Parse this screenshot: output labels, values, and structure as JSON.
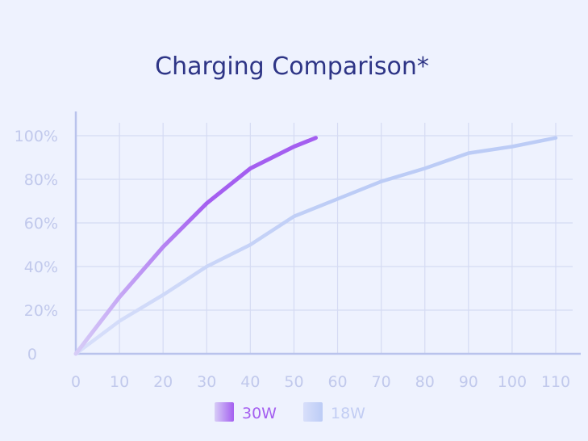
{
  "chart_data": {
    "type": "line",
    "title": "Charging Comparison*",
    "xlabel": "",
    "ylabel": "",
    "xlim": [
      0,
      110
    ],
    "ylim": [
      0,
      100
    ],
    "x_ticks": [
      0,
      10,
      20,
      30,
      40,
      50,
      60,
      70,
      80,
      90,
      100,
      110
    ],
    "x_tick_labels": [
      "0",
      "10",
      "20",
      "30",
      "40",
      "50",
      "60",
      "70",
      "80",
      "90",
      "100",
      "110"
    ],
    "y_ticks": [
      0,
      20,
      40,
      60,
      80,
      100
    ],
    "y_tick_labels": [
      "0",
      "20%",
      "40%",
      "60%",
      "80%",
      "100%"
    ],
    "grid": true,
    "legend_position": "bottom-center",
    "series": [
      {
        "name": "30W",
        "color": "#a45ff0",
        "color_start": "#d7cdf7",
        "x": [
          0,
          10,
          20,
          30,
          40,
          50,
          55
        ],
        "y": [
          0,
          26,
          49,
          69,
          85,
          95,
          99
        ]
      },
      {
        "name": "18W",
        "color": "#bcccf6",
        "color_start": "#d8dffa",
        "x": [
          0,
          10,
          20,
          30,
          40,
          50,
          60,
          70,
          80,
          90,
          100,
          110
        ],
        "y": [
          0,
          15,
          27,
          40,
          50,
          63,
          71,
          79,
          85,
          92,
          95,
          99
        ]
      }
    ]
  }
}
